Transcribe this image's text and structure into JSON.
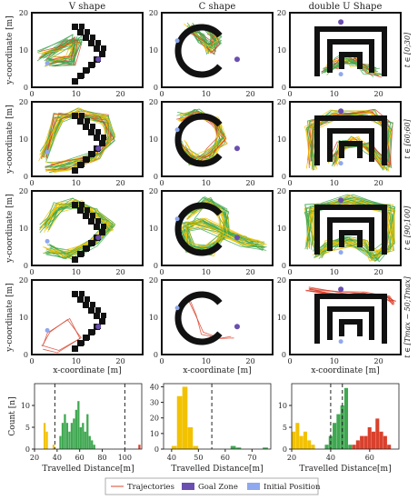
{
  "chart_data": {
    "type": "scatter",
    "columns": [
      "V shape",
      "C shape",
      "double U Shape"
    ],
    "rows": [
      "t ∈ [0;30]",
      "t ∈ [60;60]",
      "t ∈ [90;100]",
      "t ∈ [Tmax − 50;Tmax]"
    ],
    "y_axis_label": "y-coordinate [m]",
    "x_axis_label": "x-coordinate [m]",
    "traj_xlim": [
      0,
      25
    ],
    "traj_ylim": [
      0,
      20
    ],
    "traj_xticks": [
      "0",
      "10",
      "20"
    ],
    "traj_yticks": [
      "0",
      "10",
      "20"
    ],
    "goal_zones": [
      [
        15,
        7.5
      ],
      [
        17,
        7.5
      ],
      [
        11.5,
        17.5
      ]
    ],
    "initial_positions": [
      [
        3.5,
        6.5
      ],
      [
        3.5,
        12.5
      ],
      [
        11.5,
        3.5
      ]
    ],
    "histograms": [
      {
        "shape": "V shape",
        "xlim": [
          20,
          115
        ],
        "xticks": [
          20,
          40,
          60,
          80,
          100
        ],
        "ylim": [
          0,
          15
        ],
        "yticks": [
          0,
          5,
          10
        ],
        "dashed_lines": [
          38,
          100
        ],
        "bars": [
          {
            "x0": 28,
            "x1": 30,
            "count": 6,
            "color": "yellow"
          },
          {
            "x0": 30,
            "x1": 32,
            "count": 4,
            "color": "yellow"
          },
          {
            "x0": 36,
            "x1": 38,
            "count": 1,
            "color": "yellow"
          },
          {
            "x0": 42,
            "x1": 44,
            "count": 3,
            "color": "green"
          },
          {
            "x0": 44,
            "x1": 46,
            "count": 6,
            "color": "green"
          },
          {
            "x0": 46,
            "x1": 48,
            "count": 8,
            "color": "green"
          },
          {
            "x0": 48,
            "x1": 50,
            "count": 6,
            "color": "green"
          },
          {
            "x0": 50,
            "x1": 52,
            "count": 4,
            "color": "green"
          },
          {
            "x0": 52,
            "x1": 54,
            "count": 6,
            "color": "green"
          },
          {
            "x0": 54,
            "x1": 56,
            "count": 7,
            "color": "green"
          },
          {
            "x0": 56,
            "x1": 58,
            "count": 9,
            "color": "green"
          },
          {
            "x0": 58,
            "x1": 60,
            "count": 11,
            "color": "green"
          },
          {
            "x0": 60,
            "x1": 62,
            "count": 5,
            "color": "green"
          },
          {
            "x0": 62,
            "x1": 64,
            "count": 6,
            "color": "green"
          },
          {
            "x0": 64,
            "x1": 66,
            "count": 4,
            "color": "green"
          },
          {
            "x0": 66,
            "x1": 68,
            "count": 8,
            "color": "green"
          },
          {
            "x0": 68,
            "x1": 70,
            "count": 3,
            "color": "green"
          },
          {
            "x0": 70,
            "x1": 72,
            "count": 2,
            "color": "green"
          },
          {
            "x0": 72,
            "x1": 74,
            "count": 1,
            "color": "green"
          },
          {
            "x0": 112,
            "x1": 114,
            "count": 1,
            "color": "red"
          }
        ]
      },
      {
        "shape": "C shape",
        "xlim": [
          37,
          77
        ],
        "xticks": [
          40,
          50,
          60,
          70
        ],
        "ylim": [
          0,
          42
        ],
        "yticks": [
          0,
          10,
          20,
          30,
          40
        ],
        "dashed_lines": [
          55
        ],
        "bars": [
          {
            "x0": 40,
            "x1": 42,
            "count": 2,
            "color": "yellow"
          },
          {
            "x0": 42,
            "x1": 44,
            "count": 34,
            "color": "yellow"
          },
          {
            "x0": 44,
            "x1": 46,
            "count": 40,
            "color": "yellow"
          },
          {
            "x0": 46,
            "x1": 48,
            "count": 14,
            "color": "yellow"
          },
          {
            "x0": 48,
            "x1": 50,
            "count": 2,
            "color": "yellow"
          },
          {
            "x0": 62,
            "x1": 64,
            "count": 2,
            "color": "green"
          },
          {
            "x0": 64,
            "x1": 66,
            "count": 1,
            "color": "green"
          },
          {
            "x0": 74,
            "x1": 76,
            "count": 1,
            "color": "green"
          }
        ]
      },
      {
        "shape": "double U Shape",
        "xlim": [
          20,
          75
        ],
        "xticks": [
          20,
          40,
          60
        ],
        "ylim": [
          0,
          15
        ],
        "yticks": [
          0,
          5,
          10
        ],
        "dashed_lines": [
          40,
          46
        ],
        "bars": [
          {
            "x0": 20,
            "x1": 22,
            "count": 4,
            "color": "yellow"
          },
          {
            "x0": 22,
            "x1": 24,
            "count": 6,
            "color": "yellow"
          },
          {
            "x0": 24,
            "x1": 26,
            "count": 3,
            "color": "yellow"
          },
          {
            "x0": 26,
            "x1": 28,
            "count": 4,
            "color": "yellow"
          },
          {
            "x0": 28,
            "x1": 30,
            "count": 2,
            "color": "yellow"
          },
          {
            "x0": 30,
            "x1": 32,
            "count": 1,
            "color": "yellow"
          },
          {
            "x0": 37,
            "x1": 39,
            "count": 1,
            "color": "green"
          },
          {
            "x0": 39,
            "x1": 41,
            "count": 3,
            "color": "green"
          },
          {
            "x0": 41,
            "x1": 43,
            "count": 6,
            "color": "green"
          },
          {
            "x0": 43,
            "x1": 45,
            "count": 8,
            "color": "green"
          },
          {
            "x0": 45,
            "x1": 47,
            "count": 10,
            "color": "green"
          },
          {
            "x0": 47,
            "x1": 49,
            "count": 14,
            "color": "green"
          },
          {
            "x0": 49,
            "x1": 51,
            "count": 1,
            "color": "green"
          },
          {
            "x0": 51,
            "x1": 53,
            "count": 1,
            "color": "red"
          },
          {
            "x0": 53,
            "x1": 55,
            "count": 2,
            "color": "red"
          },
          {
            "x0": 55,
            "x1": 57,
            "count": 3,
            "color": "red"
          },
          {
            "x0": 57,
            "x1": 59,
            "count": 3,
            "color": "red"
          },
          {
            "x0": 59,
            "x1": 61,
            "count": 5,
            "color": "red"
          },
          {
            "x0": 61,
            "x1": 63,
            "count": 4,
            "color": "red"
          },
          {
            "x0": 63,
            "x1": 65,
            "count": 7,
            "color": "red"
          },
          {
            "x0": 65,
            "x1": 67,
            "count": 4,
            "color": "red"
          },
          {
            "x0": 67,
            "x1": 69,
            "count": 3,
            "color": "red"
          },
          {
            "x0": 69,
            "x1": 71,
            "count": 1,
            "color": "red"
          }
        ]
      }
    ],
    "hist_ylabel": "Count [n]",
    "hist_xlabel": "Travelled Distance[m]",
    "legend": {
      "position": "bottom",
      "items": [
        {
          "label": "Trajectories",
          "kind": "line",
          "color": "#e0664e"
        },
        {
          "label": "Goal Zone",
          "kind": "square",
          "color": "#6a4fb0"
        },
        {
          "label": "Initial Position",
          "kind": "square",
          "color": "#8fa8ee"
        }
      ]
    },
    "colors": {
      "yellow": "#f2c200",
      "green": "#3fa851",
      "red": "#d9412c",
      "goal": "#6a4fb0",
      "initial": "#8fa8ee",
      "trajectory": "#e0664e",
      "obstacle": "#111111"
    }
  }
}
